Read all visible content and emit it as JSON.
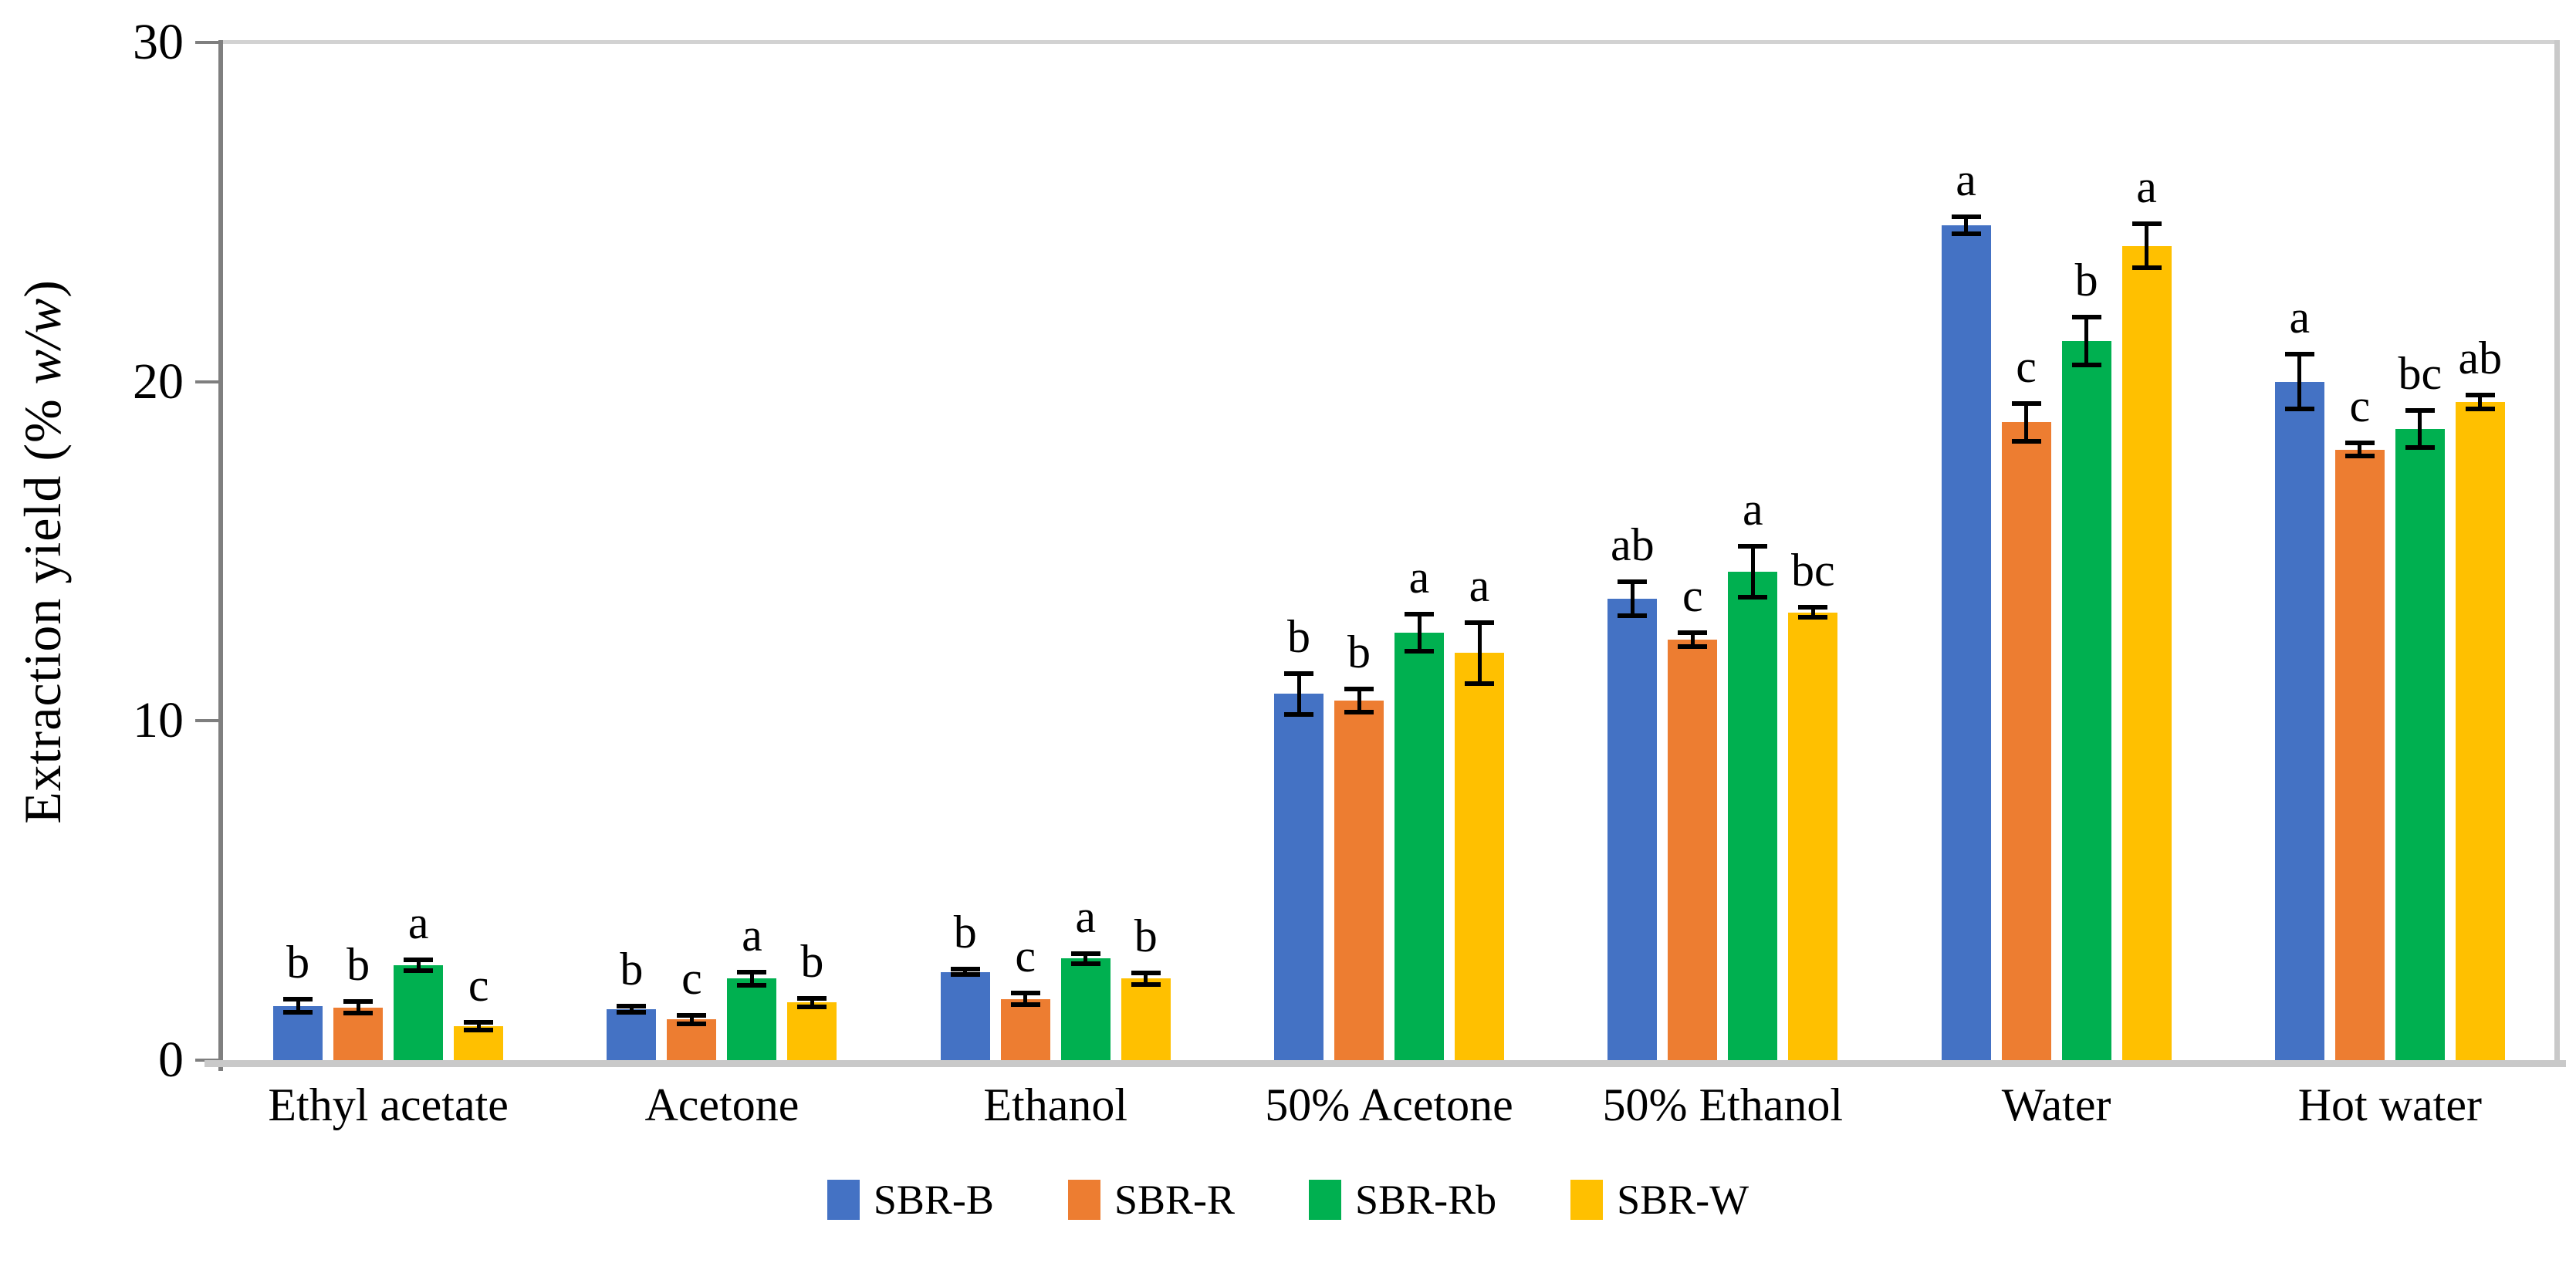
{
  "chart_data": {
    "type": "bar",
    "title": "",
    "ylabel_prefix": "Extraction yield (% ",
    "ylabel_italic": "w/w",
    "ylabel_suffix": ")",
    "ylim": [
      0,
      30
    ],
    "y_ticks": [
      0,
      10,
      20,
      30
    ],
    "grid": false,
    "legend_position": "bottom-center",
    "categories": [
      "Ethyl acetate",
      "Acetone",
      "Ethanol",
      "50% Acetone",
      "50% Ethanol",
      "Water",
      "Hot water"
    ],
    "series": [
      {
        "name": "SBR-B",
        "color": "#4472C4",
        "values": [
          1.6,
          1.5,
          2.6,
          10.8,
          13.6,
          24.6,
          20.0
        ],
        "errors": [
          0.2,
          0.1,
          0.08,
          0.6,
          0.5,
          0.25,
          0.8
        ],
        "letters": [
          "b",
          "b",
          "b",
          "b",
          "ab",
          "a",
          "a"
        ]
      },
      {
        "name": "SBR-R",
        "color": "#ED7D31",
        "values": [
          1.55,
          1.2,
          1.8,
          10.6,
          12.4,
          18.8,
          18.0
        ],
        "errors": [
          0.17,
          0.13,
          0.17,
          0.34,
          0.2,
          0.55,
          0.2
        ],
        "letters": [
          "b",
          "c",
          "c",
          "b",
          "c",
          "c",
          "c"
        ]
      },
      {
        "name": "SBR-Rb",
        "color": "#00B050",
        "values": [
          2.8,
          2.4,
          3.0,
          12.6,
          14.4,
          21.2,
          18.6
        ],
        "errors": [
          0.16,
          0.2,
          0.15,
          0.55,
          0.75,
          0.7,
          0.55
        ],
        "letters": [
          "a",
          "a",
          "a",
          "a",
          "a",
          "b",
          "bc"
        ]
      },
      {
        "name": "SBR-W",
        "color": "#FFC000",
        "values": [
          1.0,
          1.7,
          2.4,
          12.0,
          13.2,
          24.0,
          19.4
        ],
        "errors": [
          0.12,
          0.12,
          0.17,
          0.9,
          0.15,
          0.65,
          0.2
        ],
        "letters": [
          "c",
          "b",
          "b",
          "a",
          "bc",
          "a",
          "ab"
        ]
      }
    ]
  }
}
